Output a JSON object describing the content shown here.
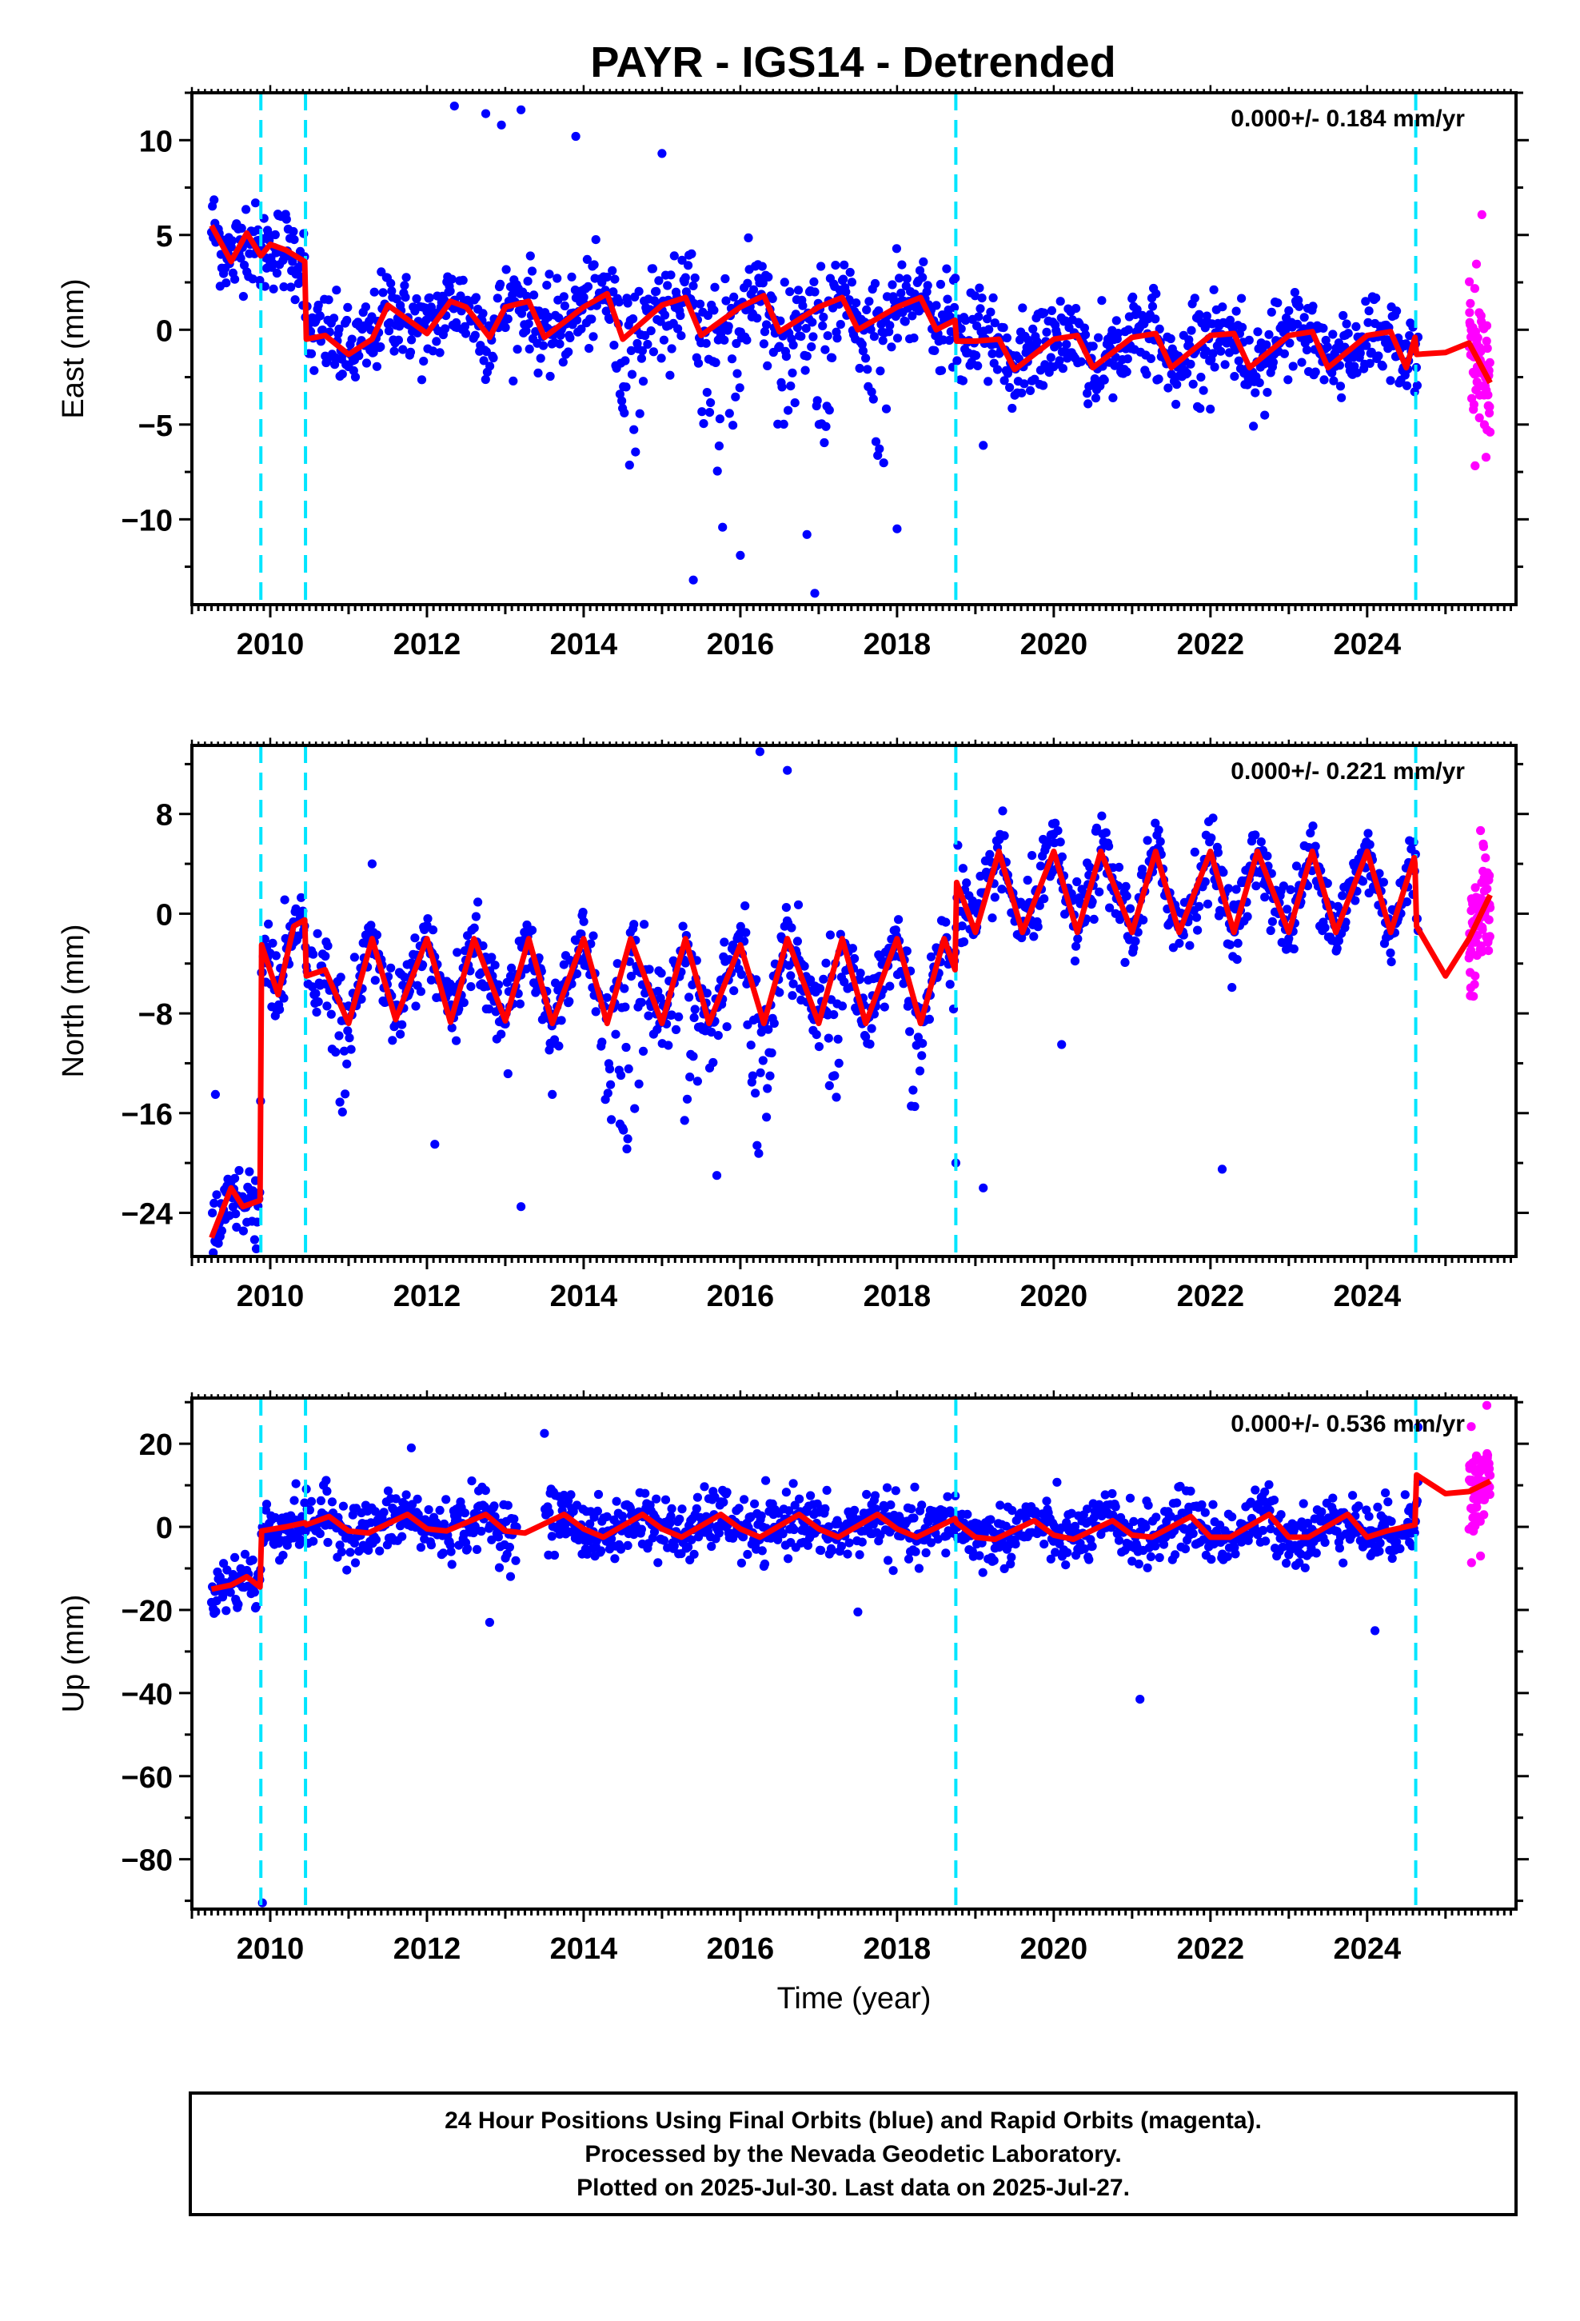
{
  "title": "PAYR - IGS14 - Detrended",
  "colors": {
    "final_orbits": "#0000ff",
    "rapid_orbits": "#ff00ff",
    "model": "#ff0000",
    "steps": "#00e5ff",
    "frame": "#000000"
  },
  "chart_data": [
    {
      "type": "scatter",
      "panel": "east",
      "ylabel": "East (mm)",
      "xlabel": "",
      "xlim": [
        2009.0,
        2025.9
      ],
      "ylim": [
        -14.5,
        12.5
      ],
      "xticks": [
        2010,
        2012,
        2014,
        2016,
        2018,
        2020,
        2022,
        2024
      ],
      "yticks": [
        -10,
        -5,
        0,
        5,
        10
      ],
      "ytick_labels": [
        "−10",
        "−5",
        "0",
        "5",
        "10"
      ],
      "rate_label": "0.000+/- 0.184 mm/yr",
      "steps": [
        2009.88,
        2010.45,
        2018.75,
        2024.62
      ],
      "final_end": 2024.65,
      "rapid_range": [
        2025.3,
        2025.57
      ],
      "model": {
        "x": [
          2009.25,
          2009.5,
          2009.7,
          2009.88,
          2010.0,
          2010.2,
          2010.44,
          2010.46,
          2010.7,
          2011.0,
          2011.3,
          2011.5,
          2012.0,
          2012.3,
          2012.5,
          2012.8,
          2013.0,
          2013.3,
          2013.5,
          2014.0,
          2014.3,
          2014.5,
          2015.0,
          2015.3,
          2015.5,
          2016.0,
          2016.3,
          2016.5,
          2017.0,
          2017.3,
          2017.5,
          2018.0,
          2018.3,
          2018.5,
          2018.74,
          2018.76,
          2019.0,
          2019.3,
          2019.5,
          2020.0,
          2020.3,
          2020.5,
          2021.0,
          2021.3,
          2021.5,
          2022.0,
          2022.3,
          2022.5,
          2023.0,
          2023.3,
          2023.5,
          2024.0,
          2024.3,
          2024.5,
          2024.61,
          2024.63,
          2025.0,
          2025.3,
          2025.57
        ],
        "y": [
          5.5,
          3.6,
          5.1,
          3.9,
          4.5,
          4.2,
          3.6,
          -0.5,
          -0.3,
          -1.3,
          -0.5,
          1.3,
          -0.2,
          1.5,
          1.2,
          -0.4,
          1.2,
          1.5,
          -0.4,
          1.2,
          1.9,
          -0.5,
          1.3,
          1.7,
          -0.3,
          1.2,
          1.8,
          -0.1,
          1.2,
          1.7,
          0.0,
          1.2,
          1.7,
          0.0,
          0.5,
          -0.6,
          -0.6,
          -0.5,
          -2.1,
          -0.5,
          -0.3,
          -2.0,
          -0.4,
          -0.2,
          -2.0,
          -0.3,
          -0.2,
          -2.0,
          -0.3,
          -0.1,
          -2.0,
          -0.3,
          -0.1,
          -2.0,
          -0.4,
          -1.3,
          -1.2,
          -0.7,
          -2.8
        ]
      },
      "outliers": [
        {
          "x": 2012.35,
          "y": 11.8
        },
        {
          "x": 2012.75,
          "y": 11.4
        },
        {
          "x": 2013.2,
          "y": 11.6
        },
        {
          "x": 2012.95,
          "y": 10.8
        },
        {
          "x": 2013.9,
          "y": 10.2
        },
        {
          "x": 2015.0,
          "y": 9.3
        },
        {
          "x": 2015.4,
          "y": -13.2
        },
        {
          "x": 2016.95,
          "y": -13.9
        },
        {
          "x": 2018.0,
          "y": -10.5
        },
        {
          "x": 2019.1,
          "y": -6.1
        },
        {
          "x": 2016.0,
          "y": -11.9
        },
        {
          "x": 2016.85,
          "y": -10.8
        }
      ],
      "bad_segments": [
        {
          "x0": 2014.35,
          "x1": 2014.85,
          "min": -8.0
        },
        {
          "x0": 2015.4,
          "x1": 2016.1,
          "min": -12.5
        },
        {
          "x0": 2016.35,
          "x1": 2016.75,
          "min": -7.5
        },
        {
          "x0": 2016.85,
          "x1": 2017.2,
          "min": -11.0
        },
        {
          "x0": 2017.55,
          "x1": 2017.95,
          "min": -7.0
        }
      ]
    },
    {
      "type": "scatter",
      "panel": "north",
      "ylabel": "North (mm)",
      "xlabel": "",
      "xlim": [
        2009.0,
        2025.9
      ],
      "ylim": [
        -27.5,
        13.5
      ],
      "xticks": [
        2010,
        2012,
        2014,
        2016,
        2018,
        2020,
        2022,
        2024
      ],
      "yticks": [
        -24,
        -16,
        -8,
        0,
        8
      ],
      "ytick_labels": [
        "−24",
        "−16",
        "−8",
        "0",
        "8"
      ],
      "rate_label": "0.000+/- 0.221 mm/yr",
      "steps": [
        2009.88,
        2010.45,
        2018.75,
        2024.62
      ],
      "final_end": 2024.65,
      "rapid_range": [
        2025.3,
        2025.57
      ],
      "model": {
        "x": [
          2009.25,
          2009.5,
          2009.65,
          2009.87,
          2009.89,
          2010.1,
          2010.3,
          2010.44,
          2010.46,
          2010.7,
          2011.0,
          2011.3,
          2011.6,
          2012.0,
          2012.3,
          2012.6,
          2013.0,
          2013.3,
          2013.6,
          2014.0,
          2014.3,
          2014.6,
          2015.0,
          2015.3,
          2015.6,
          2016.0,
          2016.3,
          2016.6,
          2017.0,
          2017.3,
          2017.6,
          2018.0,
          2018.3,
          2018.6,
          2018.74,
          2018.76,
          2019.0,
          2019.3,
          2019.6,
          2020.0,
          2020.3,
          2020.6,
          2021.0,
          2021.3,
          2021.6,
          2022.0,
          2022.3,
          2022.6,
          2023.0,
          2023.3,
          2023.6,
          2024.0,
          2024.3,
          2024.6,
          2024.61,
          2024.63,
          2025.0,
          2025.3,
          2025.57
        ],
        "y": [
          -26.0,
          -22.0,
          -23.5,
          -23.0,
          -2.5,
          -6.5,
          -1.0,
          -0.5,
          -5.0,
          -4.5,
          -8.8,
          -2.0,
          -8.5,
          -2.0,
          -8.7,
          -2.0,
          -8.6,
          -2.0,
          -8.8,
          -2.0,
          -8.8,
          -2.0,
          -8.8,
          -2.0,
          -8.8,
          -2.5,
          -8.8,
          -2.0,
          -8.8,
          -2.0,
          -8.8,
          -2.0,
          -8.8,
          -2.0,
          -4.5,
          2.5,
          -1.5,
          5.0,
          -1.5,
          5.0,
          -1.5,
          5.0,
          -1.5,
          5.0,
          -1.5,
          5.0,
          -1.5,
          5.0,
          -1.5,
          5.0,
          -1.5,
          5.0,
          -1.5,
          4.5,
          4.0,
          -1.0,
          -5.0,
          -2.0,
          1.5
        ]
      },
      "outliers": [
        {
          "x": 2016.25,
          "y": 13.0
        },
        {
          "x": 2016.6,
          "y": 11.5
        },
        {
          "x": 2022.15,
          "y": -20.5
        },
        {
          "x": 2020.1,
          "y": -10.5
        },
        {
          "x": 2019.1,
          "y": -22.0
        },
        {
          "x": 2009.3,
          "y": -14.5
        },
        {
          "x": 2011.3,
          "y": 4.0
        },
        {
          "x": 2013.6,
          "y": -14.5
        },
        {
          "x": 2013.2,
          "y": -23.5
        },
        {
          "x": 2012.1,
          "y": -18.5
        },
        {
          "x": 2015.7,
          "y": -21.0
        },
        {
          "x": 2018.75,
          "y": -20.0
        }
      ],
      "bad_segments": [
        {
          "x0": 2010.75,
          "x1": 2011.05,
          "min": -26.5
        },
        {
          "x0": 2014.1,
          "x1": 2014.9,
          "min": -24.5
        },
        {
          "x0": 2015.1,
          "x1": 2015.55,
          "min": -24.0
        },
        {
          "x0": 2016.05,
          "x1": 2016.45,
          "min": -22.5
        },
        {
          "x0": 2017.05,
          "x1": 2017.4,
          "min": -18.0
        },
        {
          "x0": 2018.1,
          "x1": 2018.35,
          "min": -22.5
        }
      ]
    },
    {
      "type": "scatter",
      "panel": "up",
      "ylabel": "Up (mm)",
      "xlabel": "Time (year)",
      "xlim": [
        2009.0,
        2025.9
      ],
      "ylim": [
        -92.0,
        31.0
      ],
      "xticks": [
        2010,
        2012,
        2014,
        2016,
        2018,
        2020,
        2022,
        2024
      ],
      "yticks": [
        -80,
        -60,
        -40,
        -20,
        0,
        20
      ],
      "ytick_labels": [
        "−80",
        "−60",
        "−40",
        "−20",
        "0",
        "20"
      ],
      "rate_label": "0.000+/- 0.536 mm/yr",
      "steps": [
        2009.88,
        2010.45,
        2018.75,
        2024.62
      ],
      "final_end": 2024.65,
      "rapid_range": [
        2025.3,
        2025.57
      ],
      "model": {
        "x": [
          2009.25,
          2009.5,
          2009.7,
          2009.87,
          2009.89,
          2010.2,
          2010.44,
          2010.46,
          2010.75,
          2011.0,
          2011.25,
          2011.75,
          2012.0,
          2012.25,
          2012.75,
          2013.0,
          2013.25,
          2013.75,
          2014.0,
          2014.25,
          2014.75,
          2015.0,
          2015.25,
          2015.75,
          2016.0,
          2016.25,
          2016.75,
          2017.0,
          2017.25,
          2017.75,
          2018.0,
          2018.25,
          2018.74,
          2018.76,
          2019.0,
          2019.25,
          2019.75,
          2020.0,
          2020.25,
          2020.75,
          2021.0,
          2021.25,
          2021.75,
          2022.0,
          2022.25,
          2022.75,
          2023.0,
          2023.25,
          2023.75,
          2024.0,
          2024.25,
          2024.61,
          2024.63,
          2025.0,
          2025.3,
          2025.57
        ],
        "y": [
          -15.0,
          -14.0,
          -12.0,
          -14.5,
          -1.0,
          0.0,
          1.0,
          0.5,
          2.5,
          -1.0,
          -1.5,
          3.0,
          -0.5,
          -1.0,
          3.0,
          -1.0,
          -1.5,
          3.0,
          -0.5,
          -2.5,
          3.0,
          -0.5,
          -2.5,
          3.0,
          -0.5,
          -2.5,
          3.0,
          -0.5,
          -2.5,
          3.0,
          -0.5,
          -2.5,
          2.0,
          1.0,
          -2.5,
          -3.0,
          1.5,
          -2.0,
          -3.0,
          1.5,
          -2.0,
          -2.5,
          2.5,
          -2.5,
          -2.5,
          3.0,
          -2.5,
          -2.5,
          3.0,
          -2.5,
          -1.0,
          0.5,
          12.5,
          8.0,
          8.5,
          11.0
        ]
      },
      "outliers": [
        {
          "x": 2009.9,
          "y": -90.5
        },
        {
          "x": 2021.1,
          "y": -41.5
        },
        {
          "x": 2013.5,
          "y": 22.5
        },
        {
          "x": 2012.8,
          "y": -23.0
        },
        {
          "x": 2024.1,
          "y": -25.0
        },
        {
          "x": 2024.65,
          "y": 24.0
        },
        {
          "x": 2011.8,
          "y": 19.0
        },
        {
          "x": 2017.5,
          "y": -20.5
        }
      ],
      "bad_segments": []
    }
  ],
  "footer": {
    "line1": "24 Hour Positions Using Final Orbits (blue) and Rapid Orbits (magenta).",
    "line2": "Processed by the Nevada Geodetic Laboratory.",
    "line3": "Plotted on 2025-Jul-30. Last data on 2025-Jul-27."
  }
}
